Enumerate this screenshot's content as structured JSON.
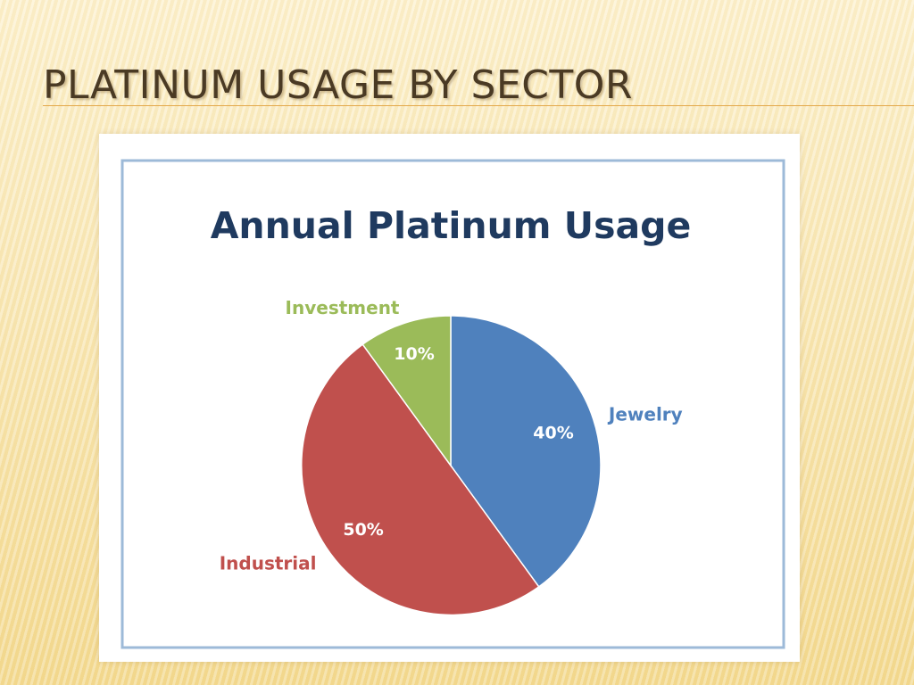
{
  "slide": {
    "title": "PLATINUM USAGE BY SECTOR"
  },
  "chart_data": {
    "type": "pie",
    "title": "Annual Platinum Usage",
    "slices": [
      {
        "label": "Jewelry",
        "value": 40,
        "value_label": "40%",
        "color": "#4f81bd"
      },
      {
        "label": "Industrial",
        "value": 50,
        "value_label": "50%",
        "color": "#c0504d"
      },
      {
        "label": "Investment",
        "value": 10,
        "value_label": "10%",
        "color": "#9bbb59"
      }
    ],
    "start_angle": "12 o'clock",
    "direction": "clockwise",
    "legend": "none",
    "labels": "outside category names, inside percentage values"
  }
}
